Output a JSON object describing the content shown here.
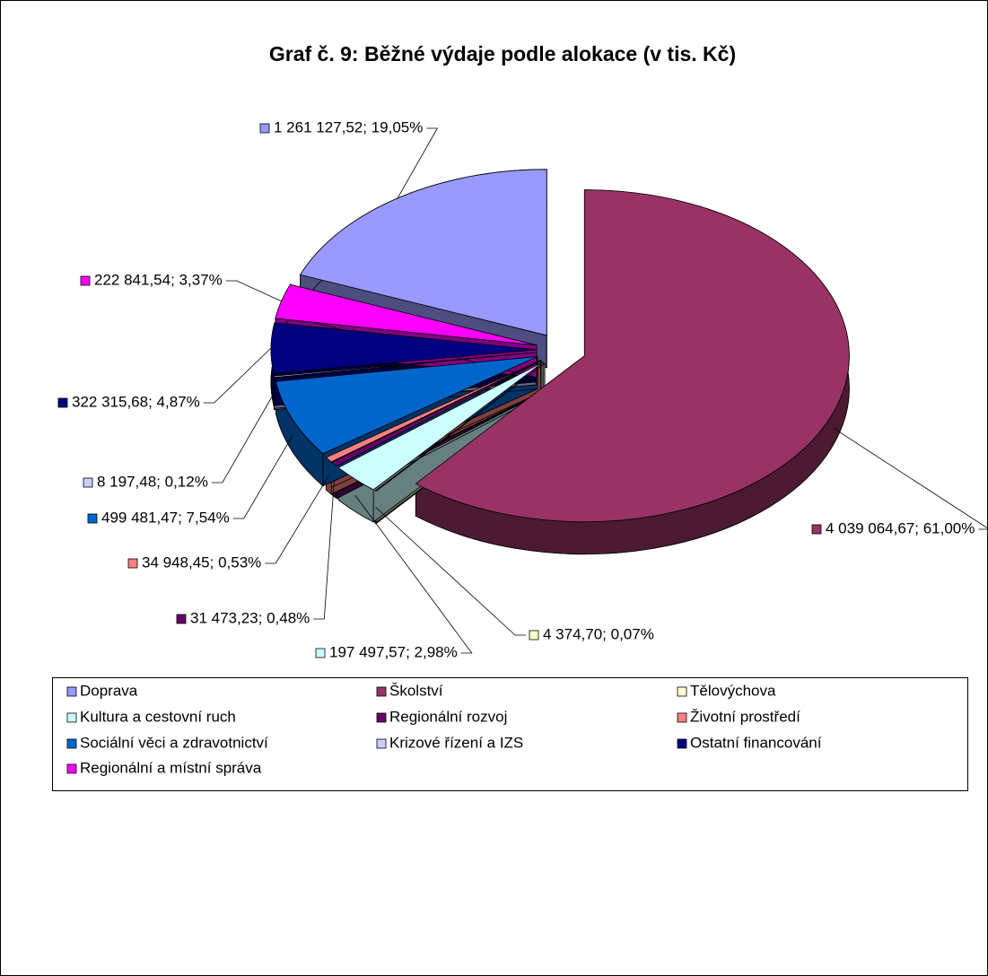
{
  "chart_data": {
    "type": "pie",
    "title": "Graf č. 9: Běžné výdaje podle alokace (v tis. Kč)",
    "categories": [
      "Doprava",
      "Školství",
      "Tělovýchova",
      "Kultura a cestovní ruch",
      "Regionální rozvoj",
      "Životní prostředí",
      "Sociální věci a zdravotnictví",
      "Krizové řízení a IZS",
      "Ostatní financování",
      "Regionální a místní správa"
    ],
    "values": [
      1261127.52,
      4039064.67,
      4374.7,
      197497.57,
      31473.23,
      34948.45,
      499481.47,
      8197.48,
      322315.68,
      222841.54
    ],
    "value_labels": [
      "1 261 127,52; 19,05%",
      "4 039 064,67; 61,00%",
      "4 374,70; 0,07%",
      "197 497,57; 2,98%",
      "31 473,23; 0,48%",
      "34 948,45; 0,53%",
      "499 481,47; 7,54%",
      "8 197,48; 0,12%",
      "322 315,68; 4,87%",
      "222 841,54; 3,37%"
    ],
    "colors": [
      "#9999ff",
      "#993366",
      "#ffffcc",
      "#ccffff",
      "#660066",
      "#ff8080",
      "#0066cc",
      "#ccccff",
      "#000080",
      "#ff00ff"
    ],
    "legend": "bottom"
  }
}
